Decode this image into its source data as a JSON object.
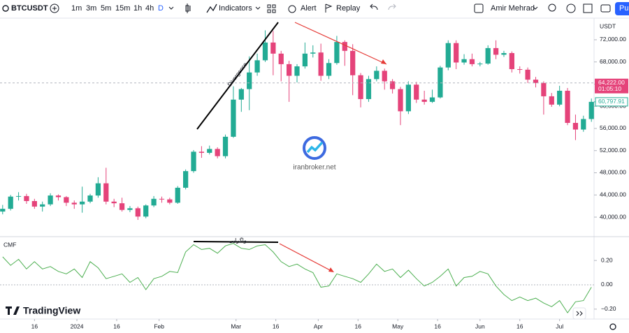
{
  "toolbar": {
    "symbol": "BTCUSDT",
    "intervals": [
      "1m",
      "3m",
      "5m",
      "15m",
      "1h",
      "4h",
      "D"
    ],
    "indicators": "Indicators",
    "alert": "Alert",
    "replay": "Replay",
    "user": "Amir Mehrad",
    "publish": "Pu"
  },
  "watermark": "iranbroker.net",
  "logo": "TradingView",
  "chart_data": [
    {
      "type": "candlestick",
      "currency": "USDT",
      "up_color": "#22ab94",
      "down_color": "#e5437a",
      "xlim": [
        "2023-12-03",
        "2024-07-14"
      ],
      "xticks": [
        {
          "value": "2023-12-16",
          "label": "16"
        },
        {
          "value": "2024-01-01",
          "label": "2024"
        },
        {
          "value": "2024-01-16",
          "label": "16"
        },
        {
          "value": "2024-02-01",
          "label": "Feb"
        },
        {
          "value": "2024-03-01",
          "label": "Mar"
        },
        {
          "value": "2024-03-16",
          "label": "16"
        },
        {
          "value": "2024-04-01",
          "label": "Apr"
        },
        {
          "value": "2024-04-16",
          "label": "16"
        },
        {
          "value": "2024-05-01",
          "label": "May"
        },
        {
          "value": "2024-05-16",
          "label": "16"
        },
        {
          "value": "2024-06-01",
          "label": "Jun"
        },
        {
          "value": "2024-06-16",
          "label": "16"
        },
        {
          "value": "2024-07-01",
          "label": "Jul"
        }
      ],
      "ylim": [
        36600,
        75900
      ],
      "yticks": [
        {
          "value": 40000,
          "label": "40,000.00"
        },
        {
          "value": 44000,
          "label": "44,000.00"
        },
        {
          "value": 48000,
          "label": "48,000.00"
        },
        {
          "value": 52000,
          "label": "52,000.00"
        },
        {
          "value": 56000,
          "label": "56,000.00"
        },
        {
          "value": 60000,
          "label": "60,000.00"
        },
        {
          "value": 64000,
          "label": "64,000.00"
        },
        {
          "value": 68000,
          "label": "68,000.00"
        },
        {
          "value": 72000,
          "label": "72,000.00"
        }
      ],
      "price_lines": [
        {
          "value": 64222,
          "label": "64,222.00",
          "countdown": "01:05:10",
          "color": "#e5437a"
        },
        {
          "value": 60797.91,
          "label": "60,797.91",
          "color": "#22ab94"
        }
      ],
      "annotation": "Divergence",
      "x": [
        "2023-12-04",
        "2023-12-07",
        "2023-12-10",
        "2023-12-13",
        "2023-12-16",
        "2023-12-19",
        "2023-12-22",
        "2023-12-25",
        "2023-12-28",
        "2023-12-31",
        "2024-01-03",
        "2024-01-06",
        "2024-01-09",
        "2024-01-12",
        "2024-01-15",
        "2024-01-18",
        "2024-01-21",
        "2024-01-24",
        "2024-01-27",
        "2024-01-30",
        "2024-02-02",
        "2024-02-05",
        "2024-02-08",
        "2024-02-11",
        "2024-02-14",
        "2024-02-17",
        "2024-02-20",
        "2024-02-23",
        "2024-02-26",
        "2024-02-29",
        "2024-03-03",
        "2024-03-06",
        "2024-03-09",
        "2024-03-12",
        "2024-03-15",
        "2024-03-18",
        "2024-03-21",
        "2024-03-24",
        "2024-03-27",
        "2024-03-30",
        "2024-04-02",
        "2024-04-05",
        "2024-04-08",
        "2024-04-11",
        "2024-04-14",
        "2024-04-17",
        "2024-04-20",
        "2024-04-23",
        "2024-04-26",
        "2024-04-29",
        "2024-05-02",
        "2024-05-05",
        "2024-05-08",
        "2024-05-11",
        "2024-05-14",
        "2024-05-17",
        "2024-05-20",
        "2024-05-23",
        "2024-05-26",
        "2024-05-29",
        "2024-06-01",
        "2024-06-04",
        "2024-06-07",
        "2024-06-10",
        "2024-06-13",
        "2024-06-16",
        "2024-06-19",
        "2024-06-22",
        "2024-06-25",
        "2024-06-28",
        "2024-07-01",
        "2024-07-04",
        "2024-07-07",
        "2024-07-10",
        "2024-07-13"
      ],
      "ohlc": [
        [
          41000,
          42200,
          40500,
          41500
        ],
        [
          41500,
          44000,
          41200,
          43700
        ],
        [
          43700,
          44500,
          43000,
          43800
        ],
        [
          43800,
          44200,
          42400,
          42900
        ],
        [
          42900,
          43300,
          41500,
          41900
        ],
        [
          41900,
          42800,
          41000,
          42300
        ],
        [
          42300,
          44300,
          42000,
          43900
        ],
        [
          43900,
          44100,
          43000,
          43600
        ],
        [
          43600,
          43800,
          42000,
          42600
        ],
        [
          42600,
          43000,
          41500,
          42300
        ],
        [
          42300,
          45500,
          40800,
          42800
        ],
        [
          42800,
          44200,
          42500,
          43900
        ],
        [
          43900,
          47200,
          43500,
          46100
        ],
        [
          46100,
          48900,
          42300,
          42800
        ],
        [
          42800,
          43300,
          41800,
          42500
        ],
        [
          42500,
          43500,
          41000,
          41300
        ],
        [
          41300,
          42000,
          40900,
          41600
        ],
        [
          41600,
          41900,
          39500,
          40100
        ],
        [
          40100,
          42300,
          39800,
          42100
        ],
        [
          42100,
          43800,
          41800,
          43300
        ],
        [
          43300,
          43700,
          42600,
          43200
        ],
        [
          43200,
          43500,
          42300,
          42600
        ],
        [
          42600,
          45600,
          42400,
          45300
        ],
        [
          45300,
          48600,
          45000,
          48300
        ],
        [
          48300,
          52100,
          48000,
          51800
        ],
        [
          51800,
          52800,
          50700,
          51600
        ],
        [
          51600,
          52900,
          51300,
          52300
        ],
        [
          52300,
          52600,
          50600,
          51000
        ],
        [
          51000,
          54900,
          50600,
          54500
        ],
        [
          54500,
          63600,
          54300,
          61200
        ],
        [
          61200,
          63300,
          59000,
          63100
        ],
        [
          63100,
          69000,
          59300,
          66100
        ],
        [
          66100,
          69500,
          65500,
          68300
        ],
        [
          68300,
          73700,
          68000,
          71500
        ],
        [
          71500,
          73600,
          65600,
          69500
        ],
        [
          69500,
          70000,
          64500,
          67600
        ],
        [
          67600,
          68200,
          60800,
          65500
        ],
        [
          65500,
          67600,
          64300,
          67200
        ],
        [
          67200,
          71500,
          66800,
          69500
        ],
        [
          69500,
          71000,
          68800,
          69700
        ],
        [
          69700,
          71300,
          64600,
          65500
        ],
        [
          65500,
          68500,
          64900,
          67800
        ],
        [
          67800,
          72700,
          67500,
          71600
        ],
        [
          71600,
          71900,
          67300,
          70000
        ],
        [
          70000,
          71200,
          62000,
          65600
        ],
        [
          65600,
          66000,
          59800,
          61300
        ],
        [
          61300,
          65500,
          60800,
          64900
        ],
        [
          64900,
          67200,
          64500,
          66400
        ],
        [
          66400,
          66800,
          63000,
          64500
        ],
        [
          64500,
          64900,
          62300,
          63100
        ],
        [
          63100,
          63500,
          56600,
          59100
        ],
        [
          59100,
          64500,
          58600,
          63900
        ],
        [
          63900,
          64400,
          60600,
          61200
        ],
        [
          61200,
          62800,
          60300,
          60800
        ],
        [
          60800,
          63000,
          60600,
          61600
        ],
        [
          61600,
          67300,
          61400,
          67000
        ],
        [
          67000,
          71900,
          66500,
          71400
        ],
        [
          71400,
          71900,
          66700,
          67900
        ],
        [
          67900,
          69400,
          67500,
          68500
        ],
        [
          68500,
          69500,
          67200,
          67600
        ],
        [
          67600,
          68000,
          67200,
          67700
        ],
        [
          67700,
          71000,
          67500,
          70500
        ],
        [
          70500,
          71900,
          68500,
          69300
        ],
        [
          69300,
          70000,
          68900,
          69600
        ],
        [
          69600,
          69900,
          66100,
          66700
        ],
        [
          66700,
          67200,
          65900,
          66600
        ],
        [
          66600,
          67000,
          64200,
          64800
        ],
        [
          64800,
          65300,
          63400,
          64200
        ],
        [
          64200,
          64500,
          58500,
          61800
        ],
        [
          61800,
          62400,
          59900,
          60300
        ],
        [
          60300,
          63700,
          60000,
          62800
        ],
        [
          62800,
          63300,
          56600,
          57000
        ],
        [
          57000,
          58500,
          53900,
          55800
        ],
        [
          55800,
          58300,
          55400,
          57700
        ],
        [
          57700,
          61400,
          57200,
          60797.91
        ]
      ]
    },
    {
      "type": "line",
      "title": "CMF",
      "color": "#4caf50",
      "annotation": "واگرایی",
      "ylim": [
        -0.27,
        0.39
      ],
      "yticks": [
        {
          "value": 0.2,
          "label": "0.20"
        },
        {
          "value": 0,
          "label": "0.00"
        },
        {
          "value": -0.2,
          "label": "−0.20"
        }
      ],
      "x": [
        "2023-12-04",
        "2023-12-07",
        "2023-12-10",
        "2023-12-13",
        "2023-12-16",
        "2023-12-19",
        "2023-12-22",
        "2023-12-25",
        "2023-12-28",
        "2023-12-31",
        "2024-01-03",
        "2024-01-06",
        "2024-01-09",
        "2024-01-12",
        "2024-01-15",
        "2024-01-18",
        "2024-01-21",
        "2024-01-24",
        "2024-01-27",
        "2024-01-30",
        "2024-02-02",
        "2024-02-05",
        "2024-02-08",
        "2024-02-11",
        "2024-02-14",
        "2024-02-17",
        "2024-02-20",
        "2024-02-23",
        "2024-02-26",
        "2024-02-29",
        "2024-03-03",
        "2024-03-06",
        "2024-03-09",
        "2024-03-12",
        "2024-03-15",
        "2024-03-18",
        "2024-03-21",
        "2024-03-24",
        "2024-03-27",
        "2024-03-30",
        "2024-04-02",
        "2024-04-05",
        "2024-04-08",
        "2024-04-11",
        "2024-04-14",
        "2024-04-17",
        "2024-04-20",
        "2024-04-23",
        "2024-04-26",
        "2024-04-29",
        "2024-05-02",
        "2024-05-05",
        "2024-05-08",
        "2024-05-11",
        "2024-05-14",
        "2024-05-17",
        "2024-05-20",
        "2024-05-23",
        "2024-05-26",
        "2024-05-29",
        "2024-06-01",
        "2024-06-04",
        "2024-06-07",
        "2024-06-10",
        "2024-06-13",
        "2024-06-16",
        "2024-06-19",
        "2024-06-22",
        "2024-06-25",
        "2024-06-28",
        "2024-07-01",
        "2024-07-04",
        "2024-07-07",
        "2024-07-10",
        "2024-07-13"
      ],
      "values": [
        0.23,
        0.16,
        0.21,
        0.13,
        0.19,
        0.13,
        0.15,
        0.11,
        0.09,
        0.13,
        0.06,
        0.19,
        0.14,
        0.05,
        0.07,
        0.09,
        0.02,
        0.06,
        -0.04,
        0.05,
        0.07,
        0.11,
        0.1,
        0.27,
        0.33,
        0.29,
        0.3,
        0.26,
        0.32,
        0.34,
        0.3,
        0.29,
        0.32,
        0.33,
        0.27,
        0.19,
        0.15,
        0.17,
        0.13,
        0.1,
        -0.02,
        -0.01,
        0.09,
        0.07,
        0.05,
        0.02,
        0.09,
        0.17,
        0.11,
        0.13,
        0.06,
        0.12,
        0.05,
        -0.01,
        0.02,
        0.07,
        0.13,
        -0.01,
        0.06,
        0.07,
        0.11,
        0.09,
        -0.01,
        -0.08,
        -0.13,
        -0.1,
        -0.13,
        -0.11,
        -0.15,
        -0.18,
        -0.13,
        -0.23,
        -0.14,
        -0.13,
        -0.02
      ]
    }
  ]
}
